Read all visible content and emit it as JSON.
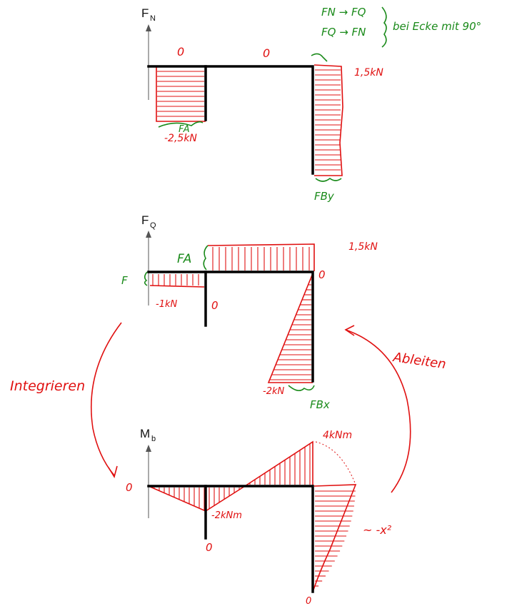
{
  "panels": {
    "normal_force": {
      "axis_label": "F",
      "axis_sub": "N",
      "zero_left": "0",
      "zero_mid": "0",
      "value_right": "1,5kN",
      "value_left": "-2,5kN",
      "support_left": "FA",
      "support_right": "FBy"
    },
    "shear_force": {
      "axis_label": "F",
      "axis_sub": "Q",
      "value_top": "1,5kN",
      "value_left": "-1kN",
      "value_bottom": "-2kN",
      "zero_right": "0",
      "zero_under": "0",
      "support_a": "FA",
      "force_f": "F",
      "support_bx": "FBx"
    },
    "bending_moment": {
      "axis_label": "M",
      "axis_sub": "b",
      "zero_left": "0",
      "value_min": "-2kNm",
      "value_max": "4kNm",
      "zero_under": "0",
      "parabola_note": "~ -x²",
      "zero_bottom": "0"
    }
  },
  "annotations": {
    "corner_rule_line1": "FN → FQ",
    "corner_rule_line2": "FQ → FN",
    "corner_rule_text": "bei Ecke mit 90°",
    "integrate": "Integrieren",
    "differentiate": "Ableiten"
  },
  "colors": {
    "frame": "#000000",
    "diagram": "#e01010",
    "support_notes": "#1a8a1a"
  }
}
